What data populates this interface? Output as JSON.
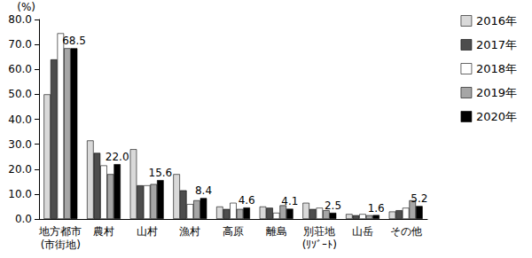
{
  "chart_data": {
    "type": "bar",
    "ylabel": "(%)",
    "categories": [
      "地方都市\n(市街地)",
      "農村",
      "山村",
      "漁村",
      "高原",
      "離島",
      "別荘地\n(ﾘｿﾞｰﾄ)",
      "山岳",
      "その他"
    ],
    "series": [
      {
        "name": "2016年",
        "color": "#d9d9d9",
        "values": [
          50,
          31.5,
          28,
          18,
          5,
          5,
          6.5,
          2,
          3
        ]
      },
      {
        "name": "2017年",
        "color": "#4d4d4d",
        "values": [
          64,
          26.5,
          13.5,
          11.5,
          4,
          4.5,
          4,
          1.5,
          3.5
        ]
      },
      {
        "name": "2018年",
        "color": "#ffffff",
        "values": [
          74.5,
          21.5,
          13.5,
          6,
          6.5,
          2.5,
          4.5,
          2,
          4.5
        ]
      },
      {
        "name": "2019年",
        "color": "#a6a6a6",
        "values": [
          68.5,
          18,
          14,
          7.5,
          4,
          5.5,
          3.5,
          1.5,
          7.5
        ]
      },
      {
        "name": "2020年",
        "color": "#000000",
        "values": [
          68.5,
          22.0,
          15.6,
          8.4,
          4.6,
          4.1,
          2.5,
          1.6,
          5.2
        ],
        "data_labels": true,
        "value_labels": [
          "68.5",
          "22.0",
          "15.6",
          "8.4",
          "4.6",
          "4.1",
          "2.5",
          "1.6",
          "5.2"
        ]
      }
    ],
    "ylim": [
      0,
      80
    ],
    "yticks": [
      {
        "value": 0,
        "label": "0.0"
      },
      {
        "value": 10,
        "label": "10.0"
      },
      {
        "value": 20,
        "label": "20.0"
      },
      {
        "value": 30,
        "label": "30.0"
      },
      {
        "value": 40,
        "label": "40.0"
      },
      {
        "value": 50,
        "label": "50.0"
      },
      {
        "value": 60,
        "label": "60.0"
      },
      {
        "value": 70,
        "label": "70.0"
      },
      {
        "value": 80,
        "label": "80.0"
      }
    ],
    "grid": false,
    "legend": "right"
  }
}
